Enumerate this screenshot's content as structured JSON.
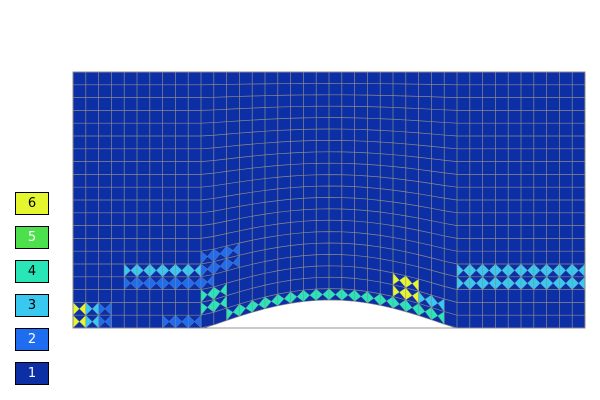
{
  "legend": {
    "items": [
      {
        "label": "6",
        "color": "#e5f52e",
        "text_color": "#000000"
      },
      {
        "label": "5",
        "color": "#4de04d",
        "text_color": "#ffffff"
      },
      {
        "label": "4",
        "color": "#28e6b8",
        "text_color": "#000000"
      },
      {
        "label": "3",
        "color": "#38c8f0",
        "text_color": "#000000"
      },
      {
        "label": "2",
        "color": "#1e6cf0",
        "text_color": "#ffffff"
      },
      {
        "label": "1",
        "color": "#0d2fa6",
        "text_color": "#ffffff"
      }
    ]
  },
  "mesh": {
    "background_color": "#0d2fa6",
    "grid_line_color": "#8a8a8a",
    "columns": 40,
    "rows": 20
  }
}
